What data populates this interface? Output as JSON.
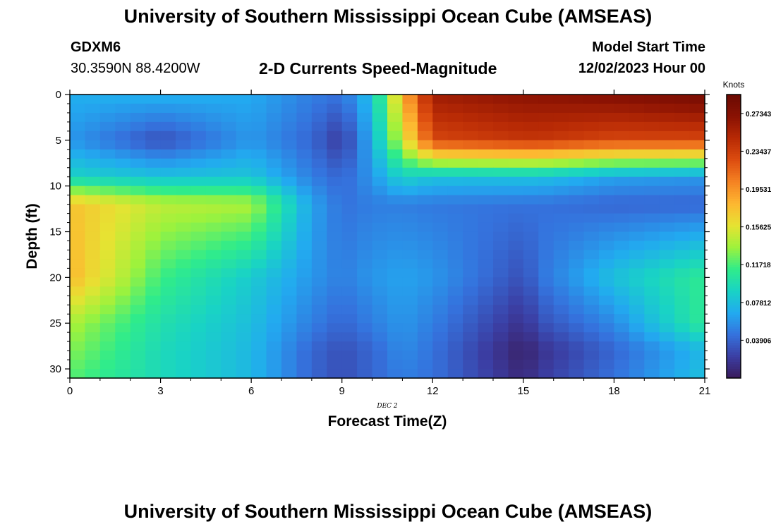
{
  "header": {
    "title": "University of Southern Mississippi Ocean Cube (AMSEAS)",
    "station": "GDXM6",
    "coords": "30.3590N  88.4200W",
    "subtitle": "2-D Currents Speed-Magnitude",
    "model_start_label": "Model Start Time",
    "model_start_value": "12/02/2023 Hour 00"
  },
  "footer": {
    "title": "University of Southern Mississippi Ocean Cube (AMSEAS)"
  },
  "chart_data": {
    "type": "heatmap",
    "title": "2-D Currents Speed-Magnitude",
    "xlabel": "Forecast Time(Z)",
    "xsublabel": "DEC 2",
    "ylabel": "Depth (ft)",
    "xlim": [
      0,
      21
    ],
    "ylim": [
      0,
      31
    ],
    "y_inverted": true,
    "xticks": [
      0,
      3,
      6,
      9,
      12,
      15,
      18,
      21
    ],
    "yticks": [
      0,
      5,
      10,
      15,
      20,
      25,
      30
    ],
    "x_nodes": [
      0,
      3,
      6,
      8,
      9,
      10,
      11,
      12,
      15,
      15.5,
      18,
      21
    ],
    "y_nodes": [
      0,
      5,
      9,
      12,
      20,
      25,
      28,
      31
    ],
    "values": [
      [
        0.07,
        0.072,
        0.068,
        0.05,
        0.045,
        0.08,
        0.18,
        0.26,
        0.27,
        0.27,
        0.275,
        0.285
      ],
      [
        0.06,
        0.03,
        0.06,
        0.04,
        0.02,
        0.07,
        0.15,
        0.23,
        0.24,
        0.24,
        0.23,
        0.23
      ],
      [
        0.09,
        0.08,
        0.082,
        0.05,
        0.04,
        0.06,
        0.09,
        0.08,
        0.08,
        0.08,
        0.065,
        0.06
      ],
      [
        0.175,
        0.145,
        0.14,
        0.065,
        0.045,
        0.05,
        0.05,
        0.048,
        0.045,
        0.045,
        0.04,
        0.04
      ],
      [
        0.18,
        0.115,
        0.085,
        0.06,
        0.05,
        0.06,
        0.065,
        0.06,
        0.03,
        0.045,
        0.08,
        0.11
      ],
      [
        0.14,
        0.1,
        0.078,
        0.05,
        0.04,
        0.05,
        0.06,
        0.05,
        0.015,
        0.03,
        0.055,
        0.11
      ],
      [
        0.13,
        0.095,
        0.075,
        0.04,
        0.03,
        0.04,
        0.055,
        0.045,
        0.005,
        0.015,
        0.04,
        0.075
      ],
      [
        0.12,
        0.095,
        0.075,
        0.04,
        0.03,
        0.04,
        0.05,
        0.045,
        0.01,
        0.02,
        0.045,
        0.08
      ]
    ],
    "colorbar": {
      "label": "Knots",
      "range": [
        0,
        0.293
      ],
      "ticks": [
        0.03906,
        0.07812,
        0.11718,
        0.15625,
        0.19531,
        0.23437,
        0.27343
      ],
      "tick_labels": [
        "0.03906",
        "0.07812",
        "0.11718",
        "0.15625",
        "0.19531",
        "0.23437",
        "0.27343"
      ],
      "colors": [
        "#3a1a5a",
        "#3b3ea3",
        "#3572dd",
        "#22aaf0",
        "#19d3c5",
        "#30ec8a",
        "#9ef23c",
        "#e6e332",
        "#fdb731",
        "#f58323",
        "#dd4d10",
        "#b82a05",
        "#8a1203",
        "#6b0a02"
      ]
    }
  }
}
